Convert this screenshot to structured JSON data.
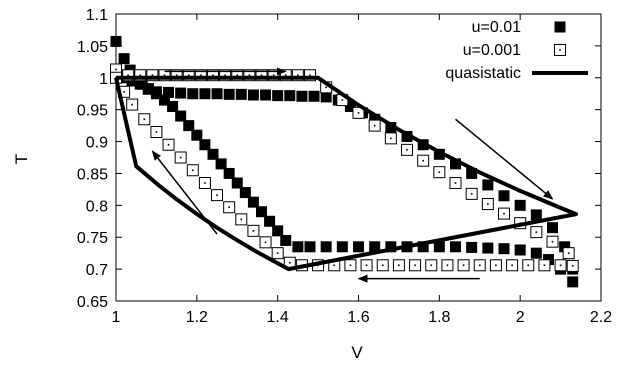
{
  "chart_data": {
    "type": "scatter",
    "title": "",
    "xlabel": "V",
    "ylabel": "T",
    "xlim": [
      1,
      2.2
    ],
    "ylim": [
      0.65,
      1.1
    ],
    "xticks": [
      "1",
      "1.2",
      "1.4",
      "1.6",
      "1.8",
      "2",
      "2.2"
    ],
    "yticks": [
      "0.65",
      "0.7",
      "0.75",
      "0.8",
      "0.85",
      "0.9",
      "0.95",
      "1",
      "1.05",
      "1.1"
    ],
    "grid": false,
    "legend_position": "top-right",
    "series": [
      {
        "name": "u=0.01",
        "marker": "filled-square",
        "x": [
          1.0,
          1.02,
          1.035,
          1.05,
          1.065,
          1.08,
          1.1,
          1.13,
          1.16,
          1.19,
          1.22,
          1.25,
          1.28,
          1.31,
          1.34,
          1.37,
          1.4,
          1.43,
          1.46,
          1.49,
          1.52,
          1.55,
          1.58,
          1.61,
          1.64,
          1.68,
          1.72,
          1.76,
          1.8,
          1.84,
          1.88,
          1.92,
          1.96,
          2.0,
          2.04,
          2.08,
          2.11,
          2.13,
          2.13,
          2.1,
          2.07,
          2.04,
          2.0,
          1.96,
          1.92,
          1.88,
          1.84,
          1.8,
          1.76,
          1.72,
          1.68,
          1.64,
          1.6,
          1.56,
          1.52,
          1.48,
          1.45,
          1.42,
          1.4,
          1.38,
          1.36,
          1.34,
          1.32,
          1.3,
          1.28,
          1.26,
          1.24,
          1.22,
          1.2,
          1.18,
          1.16,
          1.14,
          1.12,
          1.1,
          1.08,
          1.06,
          1.04,
          1.02,
          1.0
        ],
        "y": [
          1.057,
          1.03,
          1.012,
          1.0,
          0.99,
          0.982,
          0.978,
          0.977,
          0.976,
          0.975,
          0.975,
          0.975,
          0.974,
          0.974,
          0.973,
          0.973,
          0.972,
          0.972,
          0.971,
          0.971,
          0.97,
          0.965,
          0.955,
          0.945,
          0.935,
          0.922,
          0.908,
          0.895,
          0.88,
          0.865,
          0.85,
          0.832,
          0.815,
          0.8,
          0.785,
          0.765,
          0.735,
          0.7,
          0.68,
          0.7,
          0.715,
          0.725,
          0.73,
          0.732,
          0.733,
          0.734,
          0.735,
          0.735,
          0.735,
          0.735,
          0.735,
          0.735,
          0.735,
          0.735,
          0.735,
          0.735,
          0.735,
          0.745,
          0.76,
          0.775,
          0.79,
          0.805,
          0.82,
          0.835,
          0.85,
          0.865,
          0.88,
          0.895,
          0.91,
          0.925,
          0.94,
          0.955,
          0.965,
          0.975,
          0.983,
          0.99,
          0.995,
          1.0,
          1.003
        ]
      },
      {
        "name": "u=0.001",
        "marker": "open-square-dot",
        "x": [
          1.0,
          1.03,
          1.06,
          1.09,
          1.12,
          1.15,
          1.18,
          1.21,
          1.24,
          1.27,
          1.3,
          1.33,
          1.36,
          1.39,
          1.42,
          1.45,
          1.48,
          1.52,
          1.56,
          1.6,
          1.64,
          1.68,
          1.72,
          1.76,
          1.8,
          1.84,
          1.88,
          1.92,
          1.96,
          2.0,
          2.04,
          2.08,
          2.12,
          2.13,
          2.1,
          2.06,
          2.02,
          1.98,
          1.94,
          1.9,
          1.86,
          1.82,
          1.78,
          1.74,
          1.7,
          1.66,
          1.62,
          1.58,
          1.54,
          1.5,
          1.46,
          1.43,
          1.4,
          1.37,
          1.34,
          1.31,
          1.28,
          1.25,
          1.22,
          1.19,
          1.16,
          1.13,
          1.1,
          1.07,
          1.04,
          1.02,
          1.0
        ],
        "y": [
          1.013,
          1.004,
          1.004,
          1.004,
          1.004,
          1.004,
          1.004,
          1.004,
          1.004,
          1.004,
          1.004,
          1.004,
          1.004,
          1.004,
          1.004,
          1.004,
          1.004,
          0.985,
          0.965,
          0.945,
          0.925,
          0.905,
          0.887,
          0.87,
          0.852,
          0.835,
          0.818,
          0.802,
          0.787,
          0.772,
          0.758,
          0.743,
          0.725,
          0.705,
          0.706,
          0.706,
          0.706,
          0.706,
          0.706,
          0.706,
          0.706,
          0.706,
          0.706,
          0.706,
          0.706,
          0.706,
          0.706,
          0.706,
          0.706,
          0.706,
          0.706,
          0.71,
          0.725,
          0.742,
          0.76,
          0.778,
          0.797,
          0.816,
          0.835,
          0.855,
          0.875,
          0.895,
          0.915,
          0.935,
          0.958,
          0.978,
          1.0
        ]
      },
      {
        "name": "quasistatic",
        "style": "thick-line",
        "x": [
          1.0,
          1.5,
          1.6,
          1.7,
          1.8,
          1.9,
          2.0,
          2.1,
          2.1385,
          1.4268,
          1.35,
          1.3,
          1.25,
          1.2,
          1.15,
          1.1,
          1.05,
          1.0
        ],
        "y": [
          1.0,
          1.0,
          0.9572,
          0.9186,
          0.8836,
          0.8517,
          0.8226,
          0.7959,
          0.7862,
          0.7,
          0.7264,
          0.7451,
          0.765,
          0.7864,
          0.8095,
          0.8344,
          0.8614,
          1.0
        ]
      }
    ],
    "annotations": [
      {
        "type": "arrow",
        "from": [
          1.12,
          1.01
        ],
        "to": [
          1.42,
          1.01
        ]
      },
      {
        "type": "arrow",
        "from": [
          1.84,
          0.935
        ],
        "to": [
          2.08,
          0.81
        ]
      },
      {
        "type": "arrow",
        "from": [
          1.9,
          0.685
        ],
        "to": [
          1.6,
          0.685
        ]
      },
      {
        "type": "arrow",
        "from": [
          1.25,
          0.755
        ],
        "to": [
          1.09,
          0.885
        ]
      }
    ]
  }
}
